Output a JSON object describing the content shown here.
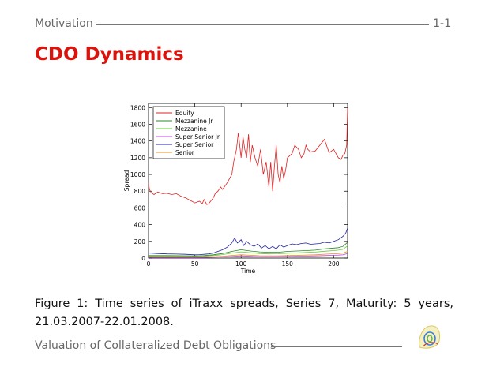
{
  "header": {
    "section": "Motivation",
    "page": "1-1"
  },
  "slide_title": "CDO Dynamics",
  "caption": "Figure 1: Time series of iTraxx spreads, Series 7, Maturity: 5 years, 21.03.2007-22.01.2008.",
  "footer": {
    "title": "Valuation of Collateralized Debt Obligations",
    "logo_icon": "quantlet-logo-icon"
  },
  "chart_data": {
    "type": "line",
    "xlabel": "Time",
    "ylabel": "Spread",
    "xlim": [
      0,
      215
    ],
    "ylim": [
      0,
      1850
    ],
    "xticks": [
      0,
      50,
      100,
      150,
      200
    ],
    "yticks": [
      0,
      200,
      400,
      600,
      800,
      1000,
      1200,
      1400,
      1600,
      1800
    ],
    "grid": false,
    "legend_position": "top-left",
    "series": [
      {
        "name": "Equity",
        "color": "#e02020",
        "x": [
          0,
          1,
          3,
          6,
          10,
          15,
          20,
          25,
          30,
          35,
          40,
          45,
          50,
          55,
          58,
          60,
          63,
          65,
          70,
          72,
          75,
          78,
          80,
          85,
          90,
          92,
          95,
          97,
          100,
          102,
          104,
          106,
          108,
          110,
          112,
          115,
          118,
          121,
          124,
          127,
          130,
          132,
          134,
          136,
          138,
          140,
          142,
          144,
          146,
          148,
          150,
          155,
          158,
          162,
          165,
          168,
          170,
          172,
          175,
          180,
          185,
          190,
          195,
          200,
          205,
          208,
          210,
          212,
          214,
          215
        ],
        "y": [
          900,
          820,
          780,
          760,
          790,
          770,
          775,
          760,
          770,
          740,
          720,
          690,
          660,
          680,
          650,
          700,
          640,
          650,
          720,
          770,
          800,
          850,
          820,
          900,
          1000,
          1150,
          1300,
          1500,
          1200,
          1450,
          1300,
          1200,
          1480,
          1150,
          1350,
          1200,
          1100,
          1300,
          1000,
          1150,
          850,
          1150,
          800,
          1100,
          1350,
          1000,
          900,
          1100,
          950,
          1050,
          1200,
          1250,
          1350,
          1300,
          1200,
          1250,
          1350,
          1300,
          1270,
          1280,
          1350,
          1420,
          1260,
          1300,
          1200,
          1180,
          1230,
          1250,
          1350,
          1800
        ]
      },
      {
        "name": "Mezzanine Jr",
        "color": "#2a8a2a",
        "x": [
          0,
          20,
          40,
          50,
          60,
          70,
          80,
          90,
          100,
          110,
          120,
          130,
          140,
          150,
          160,
          170,
          180,
          190,
          200,
          205,
          210,
          215
        ],
        "y": [
          30,
          30,
          28,
          27,
          30,
          40,
          55,
          80,
          100,
          85,
          75,
          70,
          70,
          80,
          85,
          90,
          95,
          110,
          120,
          125,
          140,
          190
        ]
      },
      {
        "name": "Mezzanine",
        "color": "#66cc33",
        "x": [
          0,
          20,
          40,
          50,
          60,
          70,
          80,
          90,
          100,
          110,
          120,
          130,
          140,
          150,
          160,
          170,
          180,
          190,
          200,
          205,
          210,
          215
        ],
        "y": [
          22,
          22,
          20,
          20,
          22,
          30,
          42,
          60,
          75,
          65,
          55,
          50,
          52,
          58,
          62,
          68,
          72,
          82,
          90,
          95,
          105,
          145
        ]
      },
      {
        "name": "Super Senior Jr",
        "color": "#c844d9",
        "x": [
          0,
          20,
          40,
          50,
          60,
          70,
          80,
          90,
          100,
          110,
          120,
          130,
          140,
          150,
          160,
          170,
          180,
          190,
          200,
          205,
          210,
          215
        ],
        "y": [
          8,
          8,
          7,
          7,
          8,
          10,
          14,
          20,
          26,
          22,
          18,
          16,
          17,
          20,
          22,
          24,
          26,
          30,
          34,
          36,
          40,
          55
        ]
      },
      {
        "name": "Super Senior",
        "color": "#2020a0",
        "x": [
          0,
          10,
          20,
          30,
          40,
          50,
          55,
          60,
          65,
          70,
          75,
          80,
          85,
          90,
          93,
          96,
          100,
          103,
          106,
          110,
          114,
          118,
          122,
          126,
          130,
          134,
          138,
          142,
          146,
          150,
          155,
          160,
          165,
          170,
          175,
          180,
          185,
          190,
          195,
          200,
          205,
          210,
          213,
          215
        ],
        "y": [
          60,
          55,
          50,
          48,
          45,
          40,
          42,
          45,
          50,
          60,
          80,
          100,
          130,
          180,
          240,
          180,
          220,
          150,
          200,
          160,
          140,
          170,
          120,
          150,
          110,
          140,
          110,
          160,
          130,
          150,
          170,
          160,
          175,
          180,
          165,
          170,
          175,
          190,
          180,
          200,
          220,
          260,
          300,
          360
        ]
      },
      {
        "name": "Senior",
        "color": "#e09020",
        "x": [
          0,
          20,
          40,
          50,
          60,
          70,
          80,
          90,
          100,
          110,
          120,
          130,
          140,
          150,
          160,
          170,
          180,
          190,
          200,
          205,
          210,
          215
        ],
        "y": [
          12,
          12,
          11,
          10,
          12,
          16,
          22,
          32,
          40,
          34,
          28,
          26,
          27,
          30,
          33,
          36,
          40,
          46,
          52,
          55,
          60,
          80
        ]
      }
    ]
  }
}
